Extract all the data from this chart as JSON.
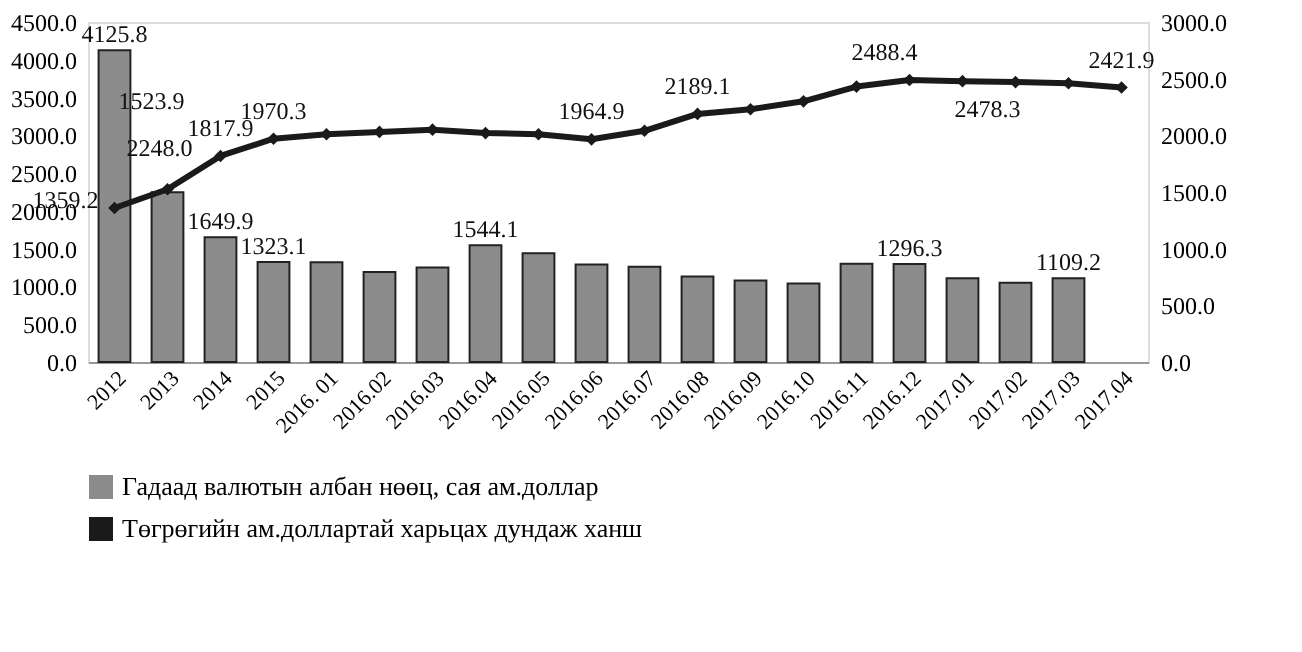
{
  "chart_data": {
    "type": "bar",
    "categories": [
      "2012",
      "2013",
      "2014",
      "2015",
      "2016. 01",
      "2016.02",
      "2016.03",
      "2016.04",
      "2016.05",
      "2016.06",
      "2016.07",
      "2016.08",
      "2016.09",
      "2016.10",
      "2016.11",
      "2016.12",
      "2017.01",
      "2017.02",
      "2017.03",
      "2017.04"
    ],
    "series": [
      {
        "name": "Гадаад валютын албан нөөц, сая ам.доллар",
        "color": "#8c8c8c",
        "values": [
          4125.8,
          2248.0,
          1649.9,
          1323.1,
          1320,
          1190,
          1250,
          1544.1,
          1440,
          1290,
          1260,
          1130,
          1080,
          1040,
          1300,
          1296.3,
          1110,
          1050,
          1109.2,
          null
        ],
        "value_labels": [
          "4125.8",
          "2248.0",
          "1649.9",
          "1323.1",
          null,
          null,
          null,
          "1544.1",
          null,
          null,
          null,
          null,
          null,
          null,
          null,
          "1296.3",
          null,
          null,
          "1109.2",
          null
        ]
      },
      {
        "name": "Төгрөгийн ам.доллартай харьцах дундаж ханш",
        "color": "#1a1a1a",
        "type": "line",
        "axis": "y2",
        "marker": "diamond",
        "values": [
          1359.2,
          1523.9,
          1817.9,
          1970.3,
          2010,
          2030,
          2050,
          2020,
          2010,
          1964.9,
          2040,
          2189.1,
          2230,
          2300,
          2430,
          2488.4,
          2478.3,
          2470,
          2460,
          2421.9
        ],
        "value_labels": [
          "1359.2",
          "1523.9",
          "1817.9",
          "1970.3",
          null,
          null,
          null,
          null,
          null,
          "1964.9",
          null,
          "2189.1",
          null,
          null,
          null,
          "2488.4",
          "2478.3",
          null,
          null,
          "2421.9"
        ]
      }
    ],
    "ylim": [
      0,
      4500
    ],
    "yticks": [
      {
        "value": 0,
        "label": "0.0"
      },
      {
        "value": 500,
        "label": "500.0"
      },
      {
        "value": 1000,
        "label": "1000.0"
      },
      {
        "value": 1500,
        "label": "1500.0"
      },
      {
        "value": 2000,
        "label": "2000.0"
      },
      {
        "value": 2500,
        "label": "2500.0"
      },
      {
        "value": 3000,
        "label": "3000.0"
      },
      {
        "value": 3500,
        "label": "3500.0"
      },
      {
        "value": 4000,
        "label": "4000.0"
      },
      {
        "value": 4500,
        "label": "4500.0"
      }
    ],
    "y2lim": [
      0,
      3000
    ],
    "y2ticks": [
      {
        "value": 0,
        "label": "0.0"
      },
      {
        "value": 500,
        "label": "500.0"
      },
      {
        "value": 1000,
        "label": "1000.0"
      },
      {
        "value": 1500,
        "label": "1500.0"
      },
      {
        "value": 2000,
        "label": "2000.0"
      },
      {
        "value": 2500,
        "label": "2500.0"
      },
      {
        "value": 3000,
        "label": "3000.0"
      }
    ],
    "grid": false,
    "legend": "bottom"
  }
}
